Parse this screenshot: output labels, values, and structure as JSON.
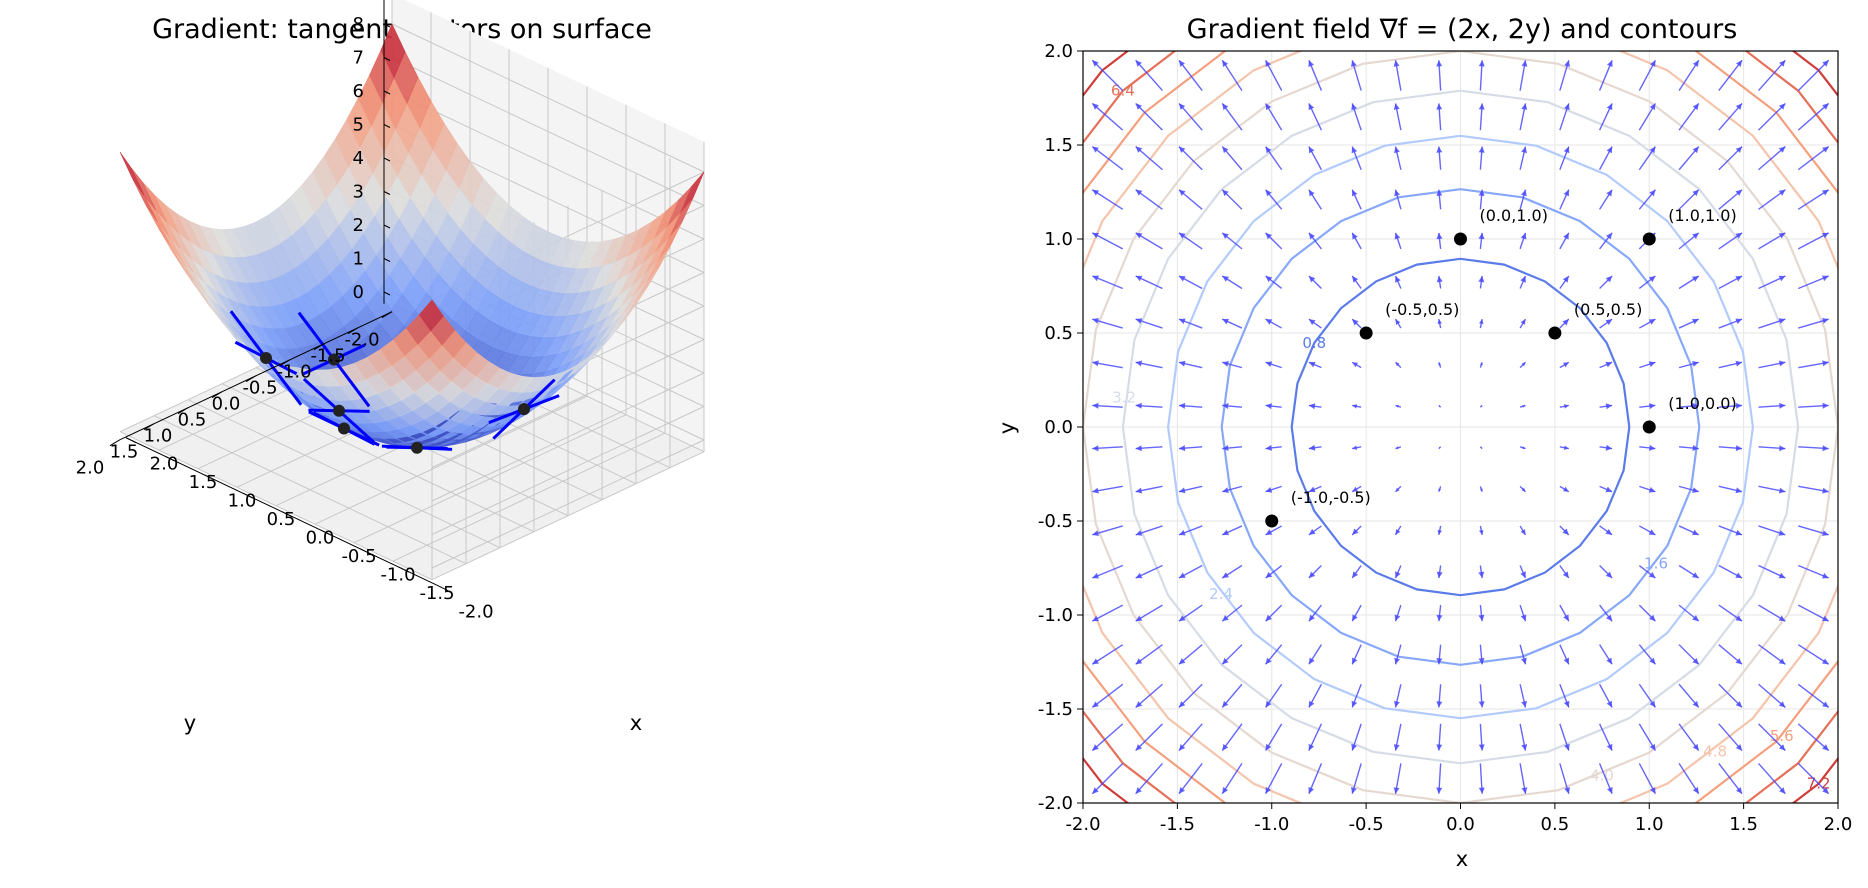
{
  "chart_data": [
    {
      "type": "surface3d",
      "title": "Gradient: tangent vectors on surface",
      "function": "f(x,y)=x^2+y^2",
      "xlabel": "x",
      "ylabel": "y",
      "xlim": [
        -2.0,
        2.0
      ],
      "ylim": [
        -2.0,
        2.0
      ],
      "zlim": [
        0,
        8
      ],
      "x_ticks": [
        "-2.0",
        "-1.5",
        "-1.0",
        "-0.5",
        "0.0",
        "0.5",
        "1.0",
        "1.5",
        "2.0"
      ],
      "y_ticks": [
        "-2.0",
        "-1.5",
        "-1.0",
        "-0.5",
        "0.0",
        "0.5",
        "1.0",
        "1.5",
        "2.0"
      ],
      "z_ticks": [
        "0",
        "1",
        "2",
        "3",
        "4",
        "5",
        "6",
        "7",
        "8"
      ],
      "colormap": "coolwarm",
      "grid": true,
      "tangent_points": [
        [
          0.0,
          1.0
        ],
        [
          1.0,
          1.0
        ],
        [
          -0.5,
          0.5
        ],
        [
          0.5,
          0.5
        ],
        [
          1.0,
          0.0
        ],
        [
          -1.0,
          -0.5
        ]
      ],
      "vector_color": "#0000ff"
    },
    {
      "type": "quiver_contour",
      "title": "Gradient field ∇f = (2x, 2y) and contours",
      "xlabel": "x",
      "ylabel": "y",
      "xlim": [
        -2.0,
        2.0
      ],
      "ylim": [
        -2.0,
        2.0
      ],
      "x_ticks": [
        "-2.0",
        "-1.5",
        "-1.0",
        "-0.5",
        "0.0",
        "0.5",
        "1.0",
        "1.5",
        "2.0"
      ],
      "y_ticks": [
        "-2.0",
        "-1.5",
        "-1.0",
        "-0.5",
        "0.0",
        "0.5",
        "1.0",
        "1.5",
        "2.0"
      ],
      "contour_levels": [
        0.8,
        1.6,
        2.4,
        3.2,
        4.0,
        4.8,
        5.6,
        6.4,
        7.2
      ],
      "contour_label_text": [
        "0.8",
        "1.6",
        "2.4",
        "3.2",
        "4.0",
        "4.8",
        "5.6",
        "6.4",
        "7.2"
      ],
      "contour_colors": [
        "#5b7be8",
        "#87a8f9",
        "#b2cbfc",
        "#d6dce6",
        "#e5d8d1",
        "#f5c4ac",
        "#f4a07e",
        "#e5715a",
        "#cf3d3a"
      ],
      "quiver_color": "#4a4aff",
      "grid": true,
      "points": [
        {
          "x": 0.0,
          "y": 1.0,
          "label": "(0.0,1.0)"
        },
        {
          "x": 1.0,
          "y": 1.0,
          "label": "(1.0,1.0)"
        },
        {
          "x": -0.5,
          "y": 0.5,
          "label": "(-0.5,0.5)"
        },
        {
          "x": 0.5,
          "y": 0.5,
          "label": "(0.5,0.5)"
        },
        {
          "x": 1.0,
          "y": 0.0,
          "label": "(1.0,0.0)"
        },
        {
          "x": -1.0,
          "y": -0.5,
          "label": "(-1.0,-0.5)"
        }
      ]
    }
  ]
}
